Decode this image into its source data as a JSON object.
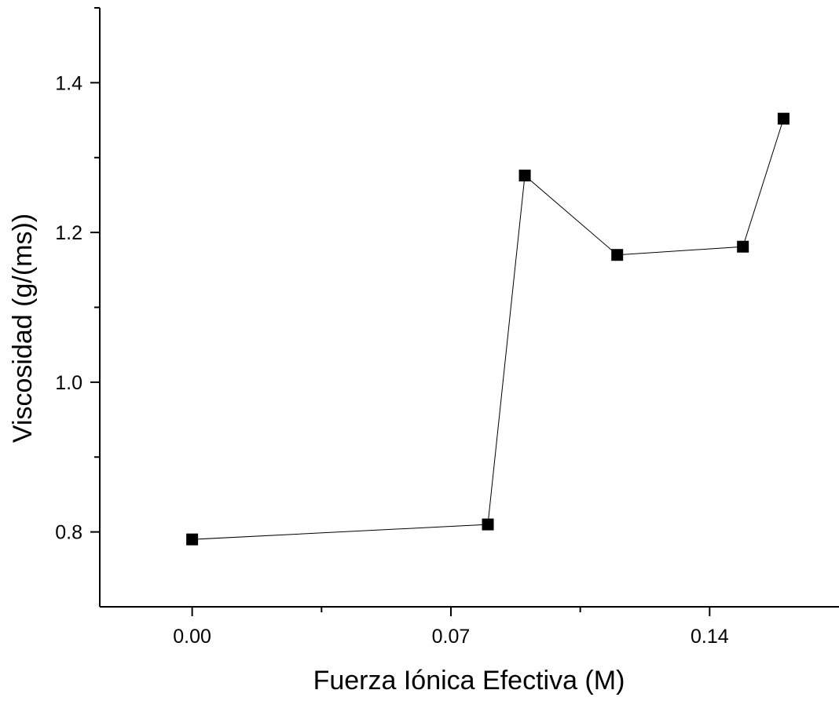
{
  "chart_data": {
    "type": "line",
    "xlabel": "Fuerza Iónica Efectiva (M)",
    "ylabel": "Viscosidad (g/(ms))",
    "xlim": [
      -0.025,
      0.175
    ],
    "ylim": [
      0.7,
      1.5
    ],
    "x_ticks": [
      {
        "value": 0.0,
        "label": "0.00"
      },
      {
        "value": 0.07,
        "label": "0.07"
      },
      {
        "value": 0.14,
        "label": "0.14"
      }
    ],
    "x_minor_ticks": [
      0.035,
      0.105
    ],
    "y_ticks": [
      {
        "value": 0.8,
        "label": "0.8"
      },
      {
        "value": 1.0,
        "label": "1.0"
      },
      {
        "value": 1.2,
        "label": "1.2"
      },
      {
        "value": 1.4,
        "label": "1.4"
      }
    ],
    "y_minor_ticks": [
      0.9,
      1.1,
      1.3,
      1.5
    ],
    "grid": false,
    "marker": "square",
    "colors": {
      "line": "#000000",
      "marker": "#000000"
    },
    "series": [
      {
        "x": [
          0.0,
          0.08,
          0.09,
          0.115,
          0.149,
          0.16
        ],
        "y": [
          0.79,
          0.81,
          1.276,
          1.17,
          1.181,
          1.352
        ]
      }
    ]
  }
}
